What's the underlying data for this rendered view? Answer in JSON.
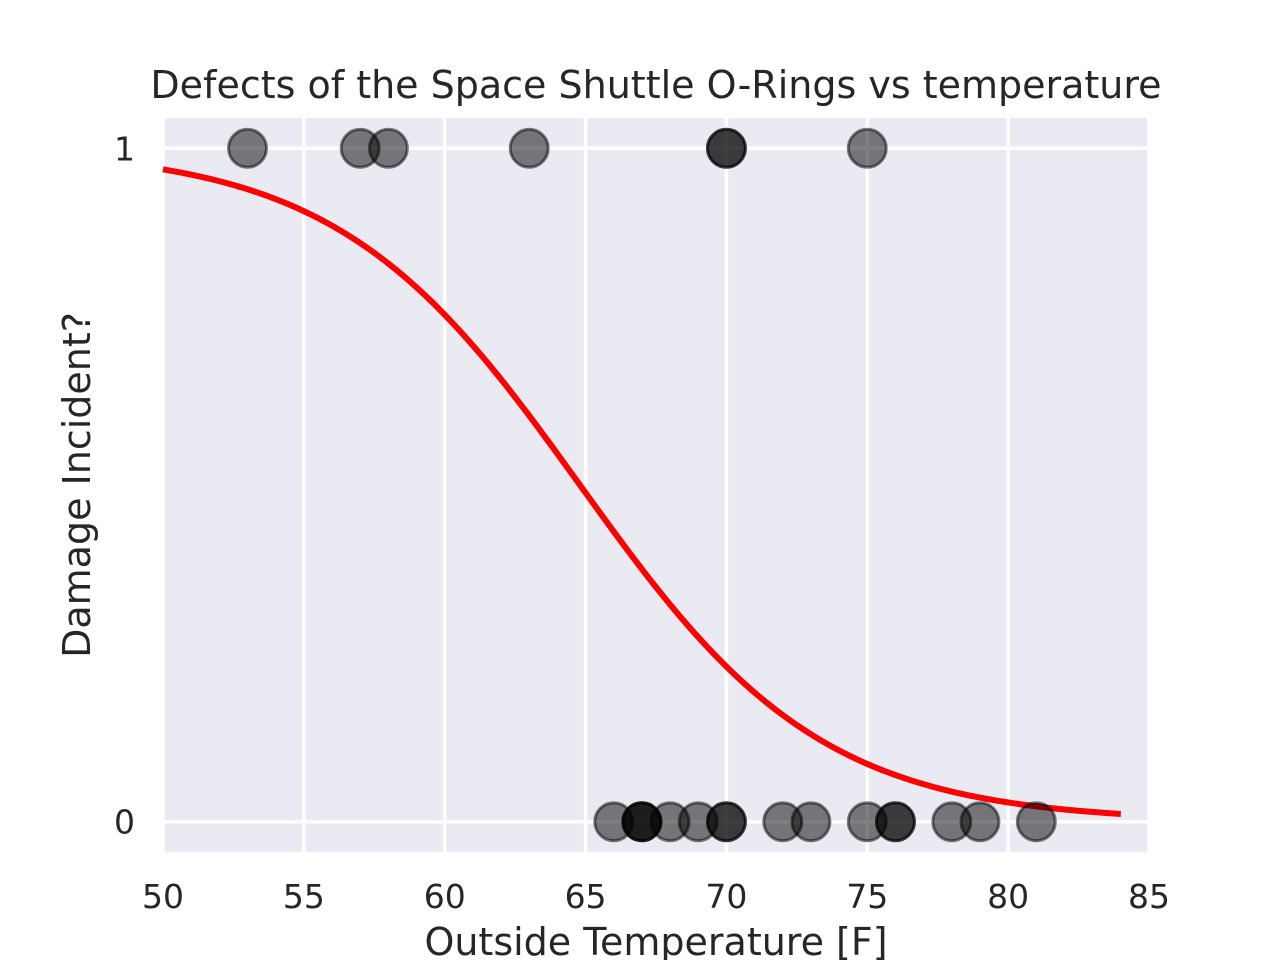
{
  "chart_data": {
    "type": "scatter",
    "title": "Defects of the Space Shuttle O-Rings vs temperature",
    "xlabel": "Outside Temperature [F]",
    "ylabel": "Damage Incident?",
    "xlim": [
      50,
      85
    ],
    "ylim": [
      -0.045,
      1.045
    ],
    "xticks": [
      50,
      55,
      60,
      65,
      70,
      75,
      80,
      85
    ],
    "yticks": [
      0,
      1
    ],
    "grid": true,
    "legend": "none",
    "points": {
      "x": [
        53,
        57,
        58,
        63,
        66,
        67,
        67,
        67,
        68,
        69,
        70,
        70,
        70,
        70,
        72,
        73,
        75,
        75,
        76,
        76,
        78,
        79,
        81
      ],
      "y": [
        1,
        1,
        1,
        1,
        0,
        0,
        0,
        0,
        0,
        0,
        0,
        0,
        1,
        1,
        0,
        0,
        0,
        1,
        0,
        0,
        0,
        0,
        0
      ]
    },
    "fit_curve": {
      "type": "logistic",
      "x_range": [
        50,
        84
      ],
      "midpoint": 64.8,
      "slope": -0.232,
      "color": "#ff0000"
    },
    "colors": {
      "background": "#eaeaf2",
      "grid": "#ffffff",
      "marker": "#000000",
      "curve": "#ff0000"
    }
  }
}
